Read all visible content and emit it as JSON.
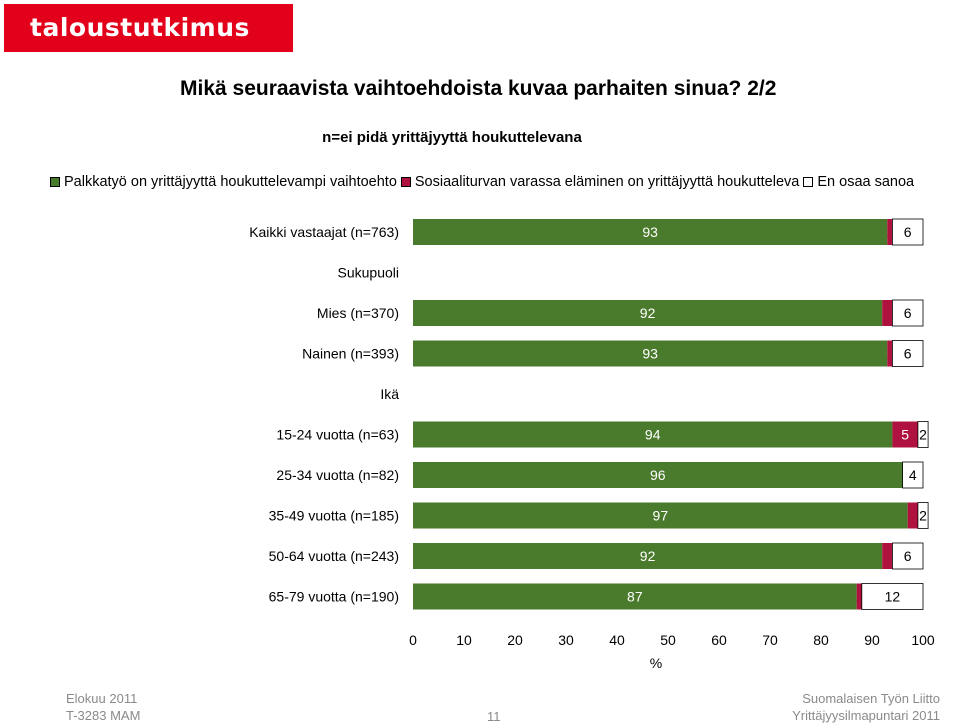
{
  "brand": {
    "logo_text": "taloustutkimus oy"
  },
  "title": "Mikä seuraavista vaihtoehdoista kuvaa parhaiten sinua? 2/2",
  "subtitle": "n=ei pidä yrittäjyyttä houkuttelevana",
  "legend": [
    {
      "label": "Palkkatyö on yrittäjyyttä houkuttelevampi vaihtoehto",
      "color": "#4a7a2c"
    },
    {
      "label": "Sosiaaliturvan varassa eläminen on yrittäjyyttä houkutteleva",
      "color": "#b0123f"
    },
    {
      "label": "En osaa sanoa",
      "color": "#ffffff"
    }
  ],
  "chart_data": {
    "type": "bar",
    "orientation": "horizontal",
    "stacked": true,
    "xlabel": "%",
    "xlim": [
      0,
      100
    ],
    "xticks": [
      0,
      10,
      20,
      30,
      40,
      50,
      60,
      70,
      80,
      90,
      100
    ],
    "grid": false,
    "legend_position": "top",
    "rows": [
      {
        "label": "Kaikki vastaajat (n=763)",
        "values": [
          93,
          1,
          6
        ]
      },
      {
        "label": "Sukupuoli",
        "header": true
      },
      {
        "label": "Mies (n=370)",
        "values": [
          92,
          2,
          6
        ]
      },
      {
        "label": "Nainen (n=393)",
        "values": [
          93,
          1,
          6
        ]
      },
      {
        "label": "Ikä",
        "header": true
      },
      {
        "label": "15-24 vuotta (n=63)",
        "values": [
          94,
          5,
          2
        ]
      },
      {
        "label": "25-34 vuotta (n=82)",
        "values": [
          96,
          0,
          4
        ]
      },
      {
        "label": "35-49 vuotta (n=185)",
        "values": [
          97,
          2,
          2
        ]
      },
      {
        "label": "50-64 vuotta (n=243)",
        "values": [
          92,
          2,
          6
        ]
      },
      {
        "label": "65-79 vuotta (n=190)",
        "values": [
          87,
          1,
          12
        ]
      }
    ],
    "series": [
      {
        "name": "Palkkatyö on yrittäjyyttä houkuttelevampi vaihtoehto",
        "color": "#4a7a2c"
      },
      {
        "name": "Sosiaaliturvan varassa eläminen on yrittäjyyttä houkutteleva",
        "color": "#b0123f"
      },
      {
        "name": "En osaa sanoa",
        "color": "#ffffff"
      }
    ]
  },
  "footer": {
    "left_line1": "Elokuu 2011",
    "left_line2": "T-3283 MAM",
    "page_number": "11",
    "right_line1": "Suomalaisen Työn Liitto",
    "right_line2": "Yrittäjyysilmapuntari 2011"
  }
}
